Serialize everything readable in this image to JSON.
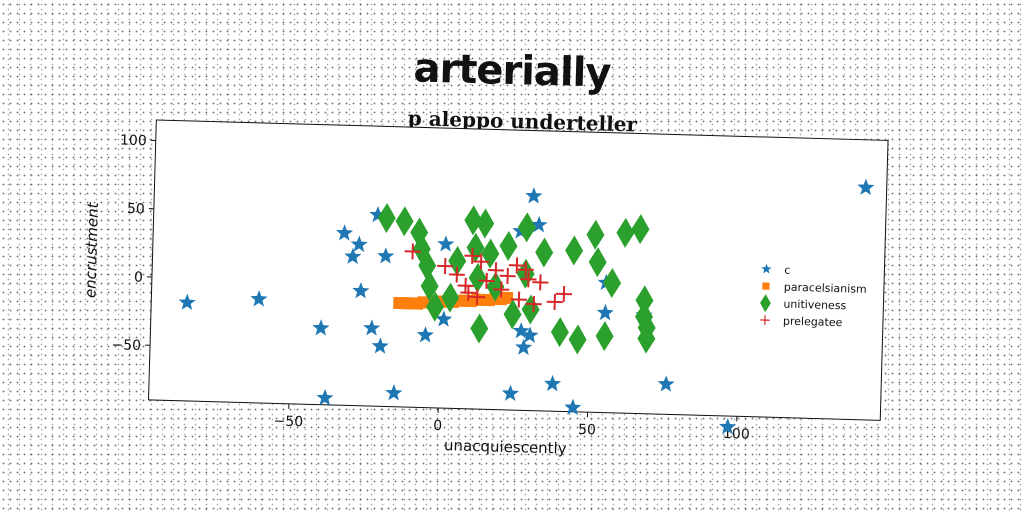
{
  "figure": {
    "suptitle": "arterially"
  },
  "chart_data": {
    "type": "scatter",
    "title": "p aleppo underteller",
    "xlabel": "unacquiescently",
    "ylabel": "encrustment",
    "xlim": [
      -97,
      148
    ],
    "ylim": [
      -90,
      115
    ],
    "xticks": [
      -50,
      0,
      50,
      100
    ],
    "yticks": [
      100,
      50,
      0,
      -50
    ],
    "xtick_labels": [
      "−50",
      "0",
      "50",
      "100"
    ],
    "ytick_labels": [
      "100",
      "50",
      "0",
      "−50"
    ],
    "grid": false,
    "legend_position": "right",
    "series": [
      {
        "name": "c",
        "marker": "star",
        "color": "#1f77b4",
        "points": [
          [
            -85,
            -18
          ],
          [
            -61,
            -14
          ],
          [
            -40,
            -34
          ],
          [
            -38,
            -85
          ],
          [
            -33,
            36
          ],
          [
            -30,
            19
          ],
          [
            -28,
            28
          ],
          [
            -27,
            -6
          ],
          [
            -23,
            -33
          ],
          [
            -22,
            50
          ],
          [
            -20,
            -46
          ],
          [
            -19,
            20
          ],
          [
            -15,
            -80
          ],
          [
            -5,
            -37
          ],
          [
            1,
            -25
          ],
          [
            1,
            30
          ],
          [
            24,
            -78
          ],
          [
            26,
            41
          ],
          [
            27,
            -32
          ],
          [
            28,
            -44
          ],
          [
            30,
            67
          ],
          [
            30,
            -35
          ],
          [
            32,
            46
          ],
          [
            38,
            -70
          ],
          [
            45,
            -87
          ],
          [
            55,
            5
          ],
          [
            55,
            -17
          ],
          [
            68,
            -18
          ],
          [
            76,
            -68
          ],
          [
            97,
            -98
          ],
          [
            141,
            80
          ]
        ]
      },
      {
        "name": "paracelsianism",
        "marker": "square",
        "color": "#ff7f0e",
        "points": [
          [
            -14,
            -14
          ],
          [
            -12,
            -14
          ],
          [
            -10,
            -14
          ],
          [
            -8,
            -14
          ],
          [
            -6,
            -13
          ],
          [
            -4,
            -13
          ],
          [
            -2,
            -13
          ],
          [
            0,
            -12
          ],
          [
            2,
            -12
          ],
          [
            4,
            -12
          ],
          [
            6,
            -11
          ],
          [
            8,
            -11
          ],
          [
            10,
            -11
          ],
          [
            12,
            -10
          ],
          [
            14,
            -10
          ],
          [
            16,
            -10
          ],
          [
            18,
            -9
          ],
          [
            20,
            -9
          ],
          [
            22,
            -8
          ]
        ]
      },
      {
        "name": "unitiveness",
        "marker": "diamond",
        "color": "#2ca02c",
        "points": [
          [
            -19,
            48
          ],
          [
            -13,
            46
          ],
          [
            -8,
            38
          ],
          [
            -7,
            26
          ],
          [
            -5,
            14
          ],
          [
            -4,
            -1
          ],
          [
            -2,
            -16
          ],
          [
            3,
            -9
          ],
          [
            5,
            18
          ],
          [
            10,
            48
          ],
          [
            11,
            28
          ],
          [
            12,
            6
          ],
          [
            13,
            -31
          ],
          [
            14,
            46
          ],
          [
            16,
            24
          ],
          [
            18,
            0
          ],
          [
            22,
            30
          ],
          [
            24,
            -20
          ],
          [
            28,
            44
          ],
          [
            28,
            10
          ],
          [
            30,
            -16
          ],
          [
            34,
            26
          ],
          [
            40,
            -32
          ],
          [
            44,
            28
          ],
          [
            46,
            -37
          ],
          [
            51,
            40
          ],
          [
            52,
            20
          ],
          [
            55,
            -34
          ],
          [
            57,
            5
          ],
          [
            61,
            42
          ],
          [
            66,
            45
          ],
          [
            68,
            -7
          ],
          [
            68,
            -19
          ],
          [
            69,
            -27
          ],
          [
            69,
            -35
          ]
        ]
      },
      {
        "name": "prelegatee",
        "marker": "plus",
        "color": "#d62728",
        "points": [
          [
            -10,
            24
          ],
          [
            1,
            14
          ],
          [
            5,
            8
          ],
          [
            8,
            0
          ],
          [
            9,
            -5
          ],
          [
            10,
            22
          ],
          [
            12,
            -8
          ],
          [
            13,
            18
          ],
          [
            15,
            4
          ],
          [
            18,
            12
          ],
          [
            20,
            -2
          ],
          [
            22,
            8
          ],
          [
            25,
            16
          ],
          [
            26,
            -9
          ],
          [
            28,
            13
          ],
          [
            29,
            6
          ],
          [
            31,
            -12
          ],
          [
            33,
            4
          ],
          [
            38,
            -10
          ],
          [
            41,
            -4
          ]
        ]
      }
    ]
  }
}
